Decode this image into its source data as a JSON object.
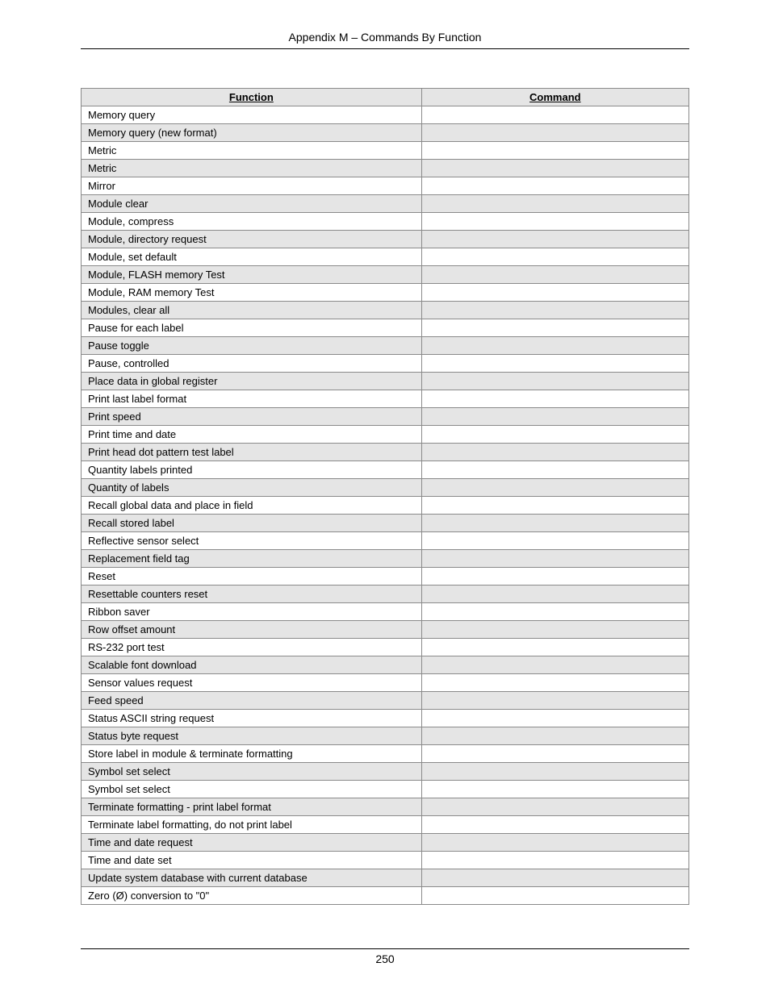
{
  "header": "Appendix M – Commands By Function",
  "pageNumber": "250",
  "table": {
    "headers": {
      "function": "Function",
      "command": "Command"
    },
    "rows": [
      {
        "function": "Memory query",
        "command": ""
      },
      {
        "function": "Memory query (new format)",
        "command": ""
      },
      {
        "function": "Metric",
        "command": ""
      },
      {
        "function": "Metric",
        "command": ""
      },
      {
        "function": "Mirror",
        "command": ""
      },
      {
        "function": "Module clear",
        "command": ""
      },
      {
        "function": "Module, compress",
        "command": ""
      },
      {
        "function": "Module, directory request",
        "command": ""
      },
      {
        "function": "Module, set default",
        "command": ""
      },
      {
        "function": "Module, FLASH memory Test",
        "command": ""
      },
      {
        "function": "Module, RAM memory Test",
        "command": ""
      },
      {
        "function": "Modules, clear all",
        "command": ""
      },
      {
        "function": "Pause for each label",
        "command": ""
      },
      {
        "function": "Pause toggle",
        "command": ""
      },
      {
        "function": "Pause, controlled",
        "command": ""
      },
      {
        "function": "Place data in global register",
        "command": ""
      },
      {
        "function": "Print last label format",
        "command": ""
      },
      {
        "function": "Print speed",
        "command": ""
      },
      {
        "function": "Print time and date",
        "command": ""
      },
      {
        "function": "Print head dot pattern test label",
        "command": ""
      },
      {
        "function": "Quantity labels printed",
        "command": ""
      },
      {
        "function": "Quantity of labels",
        "command": ""
      },
      {
        "function": "Recall global data and place in field",
        "command": ""
      },
      {
        "function": "Recall stored label",
        "command": ""
      },
      {
        "function": "Reflective sensor select",
        "command": ""
      },
      {
        "function": "Replacement field tag",
        "command": ""
      },
      {
        "function": "Reset",
        "command": ""
      },
      {
        "function": "Resettable counters reset",
        "command": ""
      },
      {
        "function": "Ribbon saver",
        "command": ""
      },
      {
        "function": "Row offset amount",
        "command": ""
      },
      {
        "function": "RS-232 port test",
        "command": ""
      },
      {
        "function": "Scalable font download",
        "command": ""
      },
      {
        "function": "Sensor values request",
        "command": ""
      },
      {
        "function": "Feed speed",
        "command": ""
      },
      {
        "function": "Status ASCII string request",
        "command": ""
      },
      {
        "function": "Status byte request",
        "command": ""
      },
      {
        "function": "Store label in module & terminate formatting",
        "command": ""
      },
      {
        "function": "Symbol set select",
        "command": ""
      },
      {
        "function": "Symbol set select",
        "command": ""
      },
      {
        "function": "Terminate formatting - print label format",
        "command": ""
      },
      {
        "function": "Terminate label formatting, do not print label",
        "command": ""
      },
      {
        "function": "Time and date request",
        "command": ""
      },
      {
        "function": "Time and date set",
        "command": ""
      },
      {
        "function": "Update system database with current database",
        "command": ""
      },
      {
        "function": "Zero (Ø) conversion to \"0\"",
        "command": ""
      }
    ]
  }
}
